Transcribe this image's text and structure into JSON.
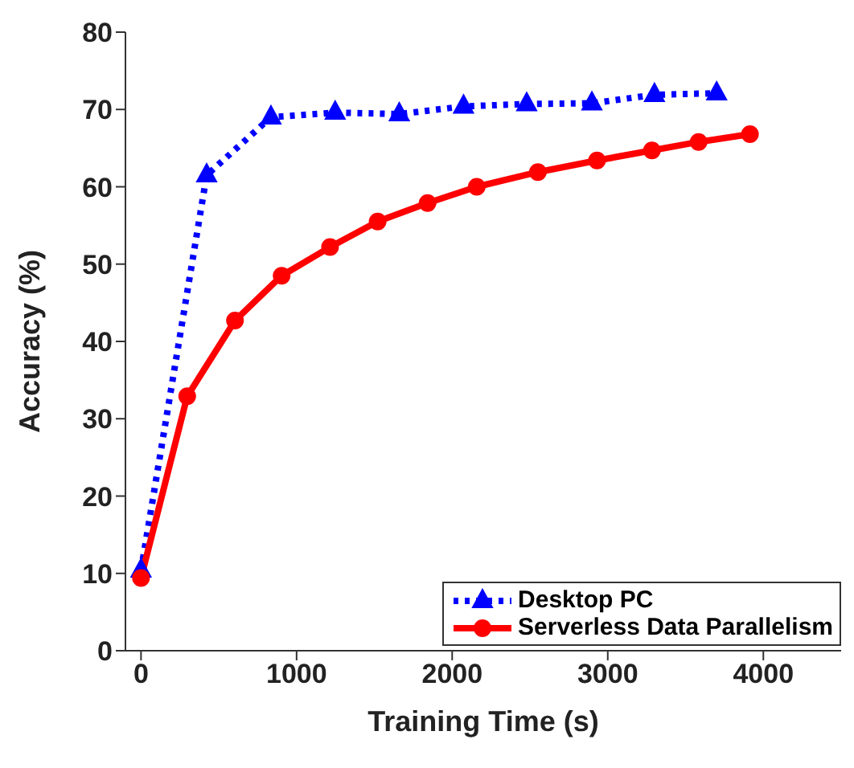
{
  "chart_data": {
    "type": "line",
    "xlabel": "Training Time (s)",
    "ylabel": "Accuracy (%)",
    "xlim": [
      -100,
      4500
    ],
    "xticks": [
      0,
      1000,
      2000,
      3000,
      4000
    ],
    "ylim": [
      0,
      80
    ],
    "yticks": [
      0,
      10,
      20,
      30,
      40,
      50,
      60,
      70,
      80
    ],
    "grid": false,
    "legend": "bottom right",
    "series": [
      {
        "name": "Desktop PC",
        "color": "#0000ff",
        "marker": "triangle",
        "line_style": "dotted",
        "x": [
          0,
          422,
          835,
          1248,
          1660,
          2073,
          2479,
          2898,
          3300,
          3700
        ],
        "values": [
          10.4,
          61.5,
          69.0,
          69.6,
          69.4,
          70.4,
          70.7,
          70.8,
          71.9,
          72.1
        ]
      },
      {
        "name": "Serverless Data Parallelism",
        "color": "#ff0000",
        "marker": "circle",
        "line_style": "solid",
        "x": [
          0,
          297,
          604,
          904,
          1215,
          1521,
          1842,
          2158,
          2551,
          2931,
          3284,
          3584,
          3914
        ],
        "values": [
          9.4,
          32.9,
          42.7,
          48.5,
          52.2,
          55.5,
          57.9,
          60.0,
          61.9,
          63.4,
          64.7,
          65.8,
          66.8
        ]
      }
    ]
  }
}
